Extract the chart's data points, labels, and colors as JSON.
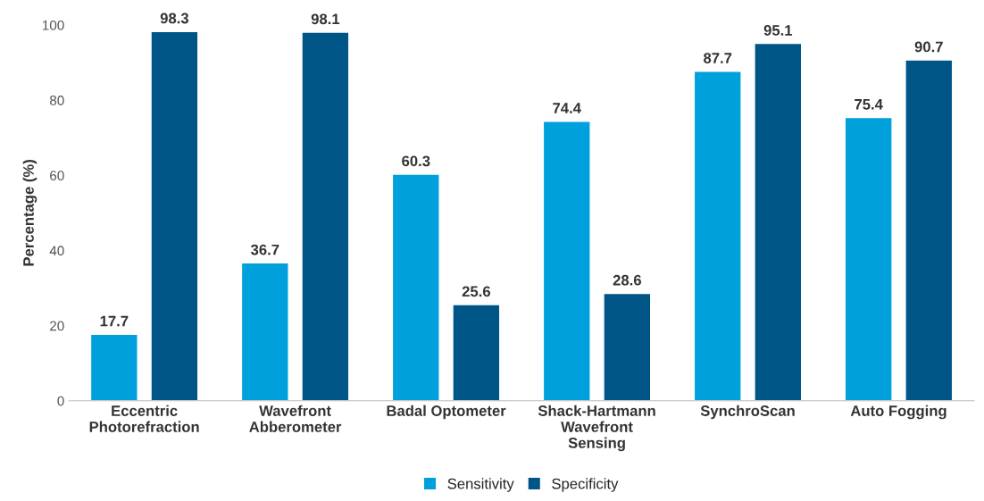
{
  "chart_data": {
    "type": "bar",
    "ylabel": "Percentage (%)",
    "categories": [
      "Eccentric\nPhotorefraction",
      "Wavefront\nAbberometer",
      "Badal Optometer",
      "Shack-Hartmann\nWavefront\nSensing",
      "SynchroScan",
      "Auto Fogging"
    ],
    "series": [
      {
        "name": "Sensitivity",
        "color": "#00a0dd",
        "values": [
          17.7,
          36.7,
          60.3,
          74.4,
          87.7,
          75.4
        ]
      },
      {
        "name": "Specificity",
        "color": "#005587",
        "values": [
          98.3,
          98.1,
          25.6,
          28.6,
          95.1,
          90.7
        ]
      }
    ],
    "ylim": [
      0,
      100
    ],
    "yticks": [
      0,
      20,
      40,
      60,
      80,
      100
    ],
    "grid": false,
    "legend": "bottom",
    "data_labels": true
  }
}
